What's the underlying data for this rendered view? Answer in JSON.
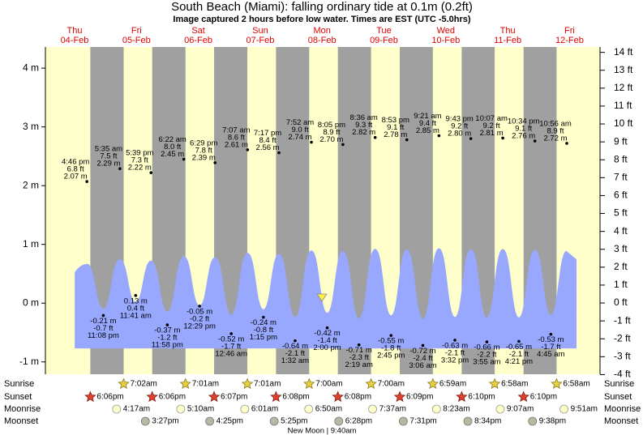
{
  "chart_data": {
    "type": "tide",
    "title": "South Beach (Miami): falling  ordinary tide at 0.1m (0.2ft)",
    "subtitle": "Image captured 2 hours before low water. Times are EST (UTC -5.0hrs)",
    "ylim": [
      -1.21,
      4.36
    ],
    "yticks": [
      {
        "value": -1,
        "label": "-1 m"
      },
      {
        "value": 0,
        "label": "0 m"
      },
      {
        "value": 1,
        "label": "1 m"
      },
      {
        "value": 2,
        "label": "2 m"
      },
      {
        "value": 3,
        "label": "3 m"
      },
      {
        "value": 4,
        "label": "4 m"
      }
    ],
    "y2lim": [
      -3.98,
      14.3
    ],
    "y2ticks": [
      {
        "value": -4,
        "label": "-4 ft"
      },
      {
        "value": -3,
        "label": "-3 ft"
      },
      {
        "value": -2,
        "label": "-2 ft"
      },
      {
        "value": -1,
        "label": "-1 ft"
      },
      {
        "value": 0,
        "label": "0 ft"
      },
      {
        "value": 1,
        "label": "1 ft"
      },
      {
        "value": 2,
        "label": "2 ft"
      },
      {
        "value": 3,
        "label": "3 ft"
      },
      {
        "value": 4,
        "label": "4 ft"
      },
      {
        "value": 5,
        "label": "5 ft"
      },
      {
        "value": 6,
        "label": "6 ft"
      },
      {
        "value": 7,
        "label": "7 ft"
      },
      {
        "value": 8,
        "label": "8 ft"
      },
      {
        "value": 9,
        "label": "9 ft"
      },
      {
        "value": 10,
        "label": "10 ft"
      },
      {
        "value": 11,
        "label": "11 ft"
      },
      {
        "value": 12,
        "label": "12 ft"
      },
      {
        "value": 13,
        "label": "13 ft"
      },
      {
        "value": 14,
        "label": "14 ft"
      }
    ],
    "row_labels": {
      "sunrise": "Sunrise",
      "sunset": "Sunset",
      "moonrise": "Moonrise",
      "moonset": "Moonset"
    },
    "moon_phase": "New Moon | 9:40am",
    "days": [
      {
        "weekday": "Thu",
        "date": "04-Feb",
        "sunset": "6:06pm",
        "tides": [
          {
            "time": "4:46 pm",
            "ft_label": "6.8 ft",
            "m": 2.07,
            "m_label": "2.07 m"
          },
          {
            "time": "11:08 pm",
            "ft_label": "-0.7 ft",
            "m": -0.21,
            "m_label": "-0.21 m"
          }
        ]
      },
      {
        "weekday": "Fri",
        "date": "05-Feb",
        "sunrise": "7:02am",
        "sunset": "6:06pm",
        "moonrise": "4:17am",
        "moonset": "3:27pm",
        "tides": [
          {
            "time": "5:35 am",
            "ft_label": "7.5 ft",
            "m": 2.29,
            "m_label": "2.29 m"
          },
          {
            "time": "11:41 am",
            "ft_label": "0.4 ft",
            "m": 0.13,
            "m_label": "0.13 m"
          },
          {
            "time": "5:39 pm",
            "ft_label": "7.3 ft",
            "m": 2.22,
            "m_label": "2.22 m"
          },
          {
            "time": "11:58 pm",
            "ft_label": "-1.2 ft",
            "m": -0.37,
            "m_label": "-0.37 m"
          }
        ]
      },
      {
        "weekday": "Sat",
        "date": "06-Feb",
        "sunrise": "7:01am",
        "sunset": "6:07pm",
        "moonrise": "5:10am",
        "moonset": "4:25pm",
        "tides": [
          {
            "time": "6:22 am",
            "ft_label": "8.0 ft",
            "m": 2.45,
            "m_label": "2.45 m"
          },
          {
            "time": "12:29 pm",
            "ft_label": "-0.2 ft",
            "m": -0.05,
            "m_label": "-0.05 m"
          },
          {
            "time": "6:29 pm",
            "ft_label": "7.8 ft",
            "m": 2.39,
            "m_label": "2.39 m"
          }
        ]
      },
      {
        "weekday": "Sun",
        "date": "07-Feb",
        "sunrise": "7:01am",
        "sunset": "6:08pm",
        "moonrise": "6:01am",
        "moonset": "5:25pm",
        "tides": [
          {
            "time": "12:46 am",
            "ft_label": "-1.7 ft",
            "m": -0.52,
            "m_label": "-0.52 m"
          },
          {
            "time": "7:07 am",
            "ft_label": "8.6 ft",
            "m": 2.61,
            "m_label": "2.61 m"
          },
          {
            "time": "1:15 pm",
            "ft_label": "-0.8 ft",
            "m": -0.24,
            "m_label": "-0.24 m"
          },
          {
            "time": "7:17 pm",
            "ft_label": "8.4 ft",
            "m": 2.56,
            "m_label": "2.56 m"
          }
        ]
      },
      {
        "weekday": "Mon",
        "date": "08-Feb",
        "sunrise": "7:00am",
        "sunset": "6:08pm",
        "moonrise": "6:50am",
        "moonset": "6:28pm",
        "tides": [
          {
            "time": "1:32 am",
            "ft_label": "-2.1 ft",
            "m": -0.64,
            "m_label": "-0.64 m"
          },
          {
            "time": "7:52 am",
            "ft_label": "9.0 ft",
            "m": 2.74,
            "m_label": "2.74 m"
          },
          {
            "time": "2:00 pm",
            "ft_label": "-1.4 ft",
            "m": -0.42,
            "m_label": "-0.42 m"
          },
          {
            "time": "8:05 pm",
            "ft_label": "8.9 ft",
            "m": 2.7,
            "m_label": "2.70 m"
          }
        ]
      },
      {
        "weekday": "Tue",
        "date": "09-Feb",
        "sunrise": "7:00am",
        "sunset": "6:09pm",
        "moonrise": "7:37am",
        "moonset": "7:31pm",
        "tides": [
          {
            "time": "2:19 am",
            "ft_label": "-2.3 ft",
            "m": -0.71,
            "m_label": "-0.71 m"
          },
          {
            "time": "8:36 am",
            "ft_label": "9.3 ft",
            "m": 2.82,
            "m_label": "2.82 m"
          },
          {
            "time": "2:45 pm",
            "ft_label": "-1.8 ft",
            "m": -0.55,
            "m_label": "-0.55 m"
          },
          {
            "time": "8:53 pm",
            "ft_label": "9.1 ft",
            "m": 2.78,
            "m_label": "2.78 m"
          }
        ]
      },
      {
        "weekday": "Wed",
        "date": "10-Feb",
        "sunrise": "6:59am",
        "sunset": "6:10pm",
        "moonrise": "8:23am",
        "moonset": "8:34pm",
        "tides": [
          {
            "time": "3:06 am",
            "ft_label": "-2.4 ft",
            "m": -0.72,
            "m_label": "-0.72 m"
          },
          {
            "time": "9:21 am",
            "ft_label": "9.4 ft",
            "m": 2.85,
            "m_label": "2.85 m"
          },
          {
            "time": "3:32 pm",
            "ft_label": "-2.1 ft",
            "m": -0.63,
            "m_label": "-0.63 m"
          },
          {
            "time": "9:43 pm",
            "ft_label": "9.2 ft",
            "m": 2.8,
            "m_label": "2.80 m"
          }
        ]
      },
      {
        "weekday": "Thu",
        "date": "11-Feb",
        "sunrise": "6:58am",
        "sunset": "6:10pm",
        "moonrise": "9:07am",
        "moonset": "9:38pm",
        "tides": [
          {
            "time": "3:55 am",
            "ft_label": "-2.2 ft",
            "m": -0.66,
            "m_label": "-0.66 m"
          },
          {
            "time": "10:07 am",
            "ft_label": "9.2 ft",
            "m": 2.81,
            "m_label": "2.81 m"
          },
          {
            "time": "4:21 pm",
            "ft_label": "-2.1 ft",
            "m": -0.65,
            "m_label": "-0.65 m"
          },
          {
            "time": "10:34 pm",
            "ft_label": "9.1 ft",
            "m": 2.76,
            "m_label": "2.76 m"
          }
        ]
      },
      {
        "weekday": "Fri",
        "date": "12-Feb",
        "sunrise": "6:58am",
        "moonrise": "9:51am",
        "tides": [
          {
            "time": "4:45 am",
            "ft_label": "-1.7 ft",
            "m": -0.53,
            "m_label": "-0.53 m"
          },
          {
            "time": "10:56 am",
            "ft_label": "8.9 ft",
            "m": 2.72,
            "m_label": "2.72 m"
          }
        ]
      }
    ]
  }
}
